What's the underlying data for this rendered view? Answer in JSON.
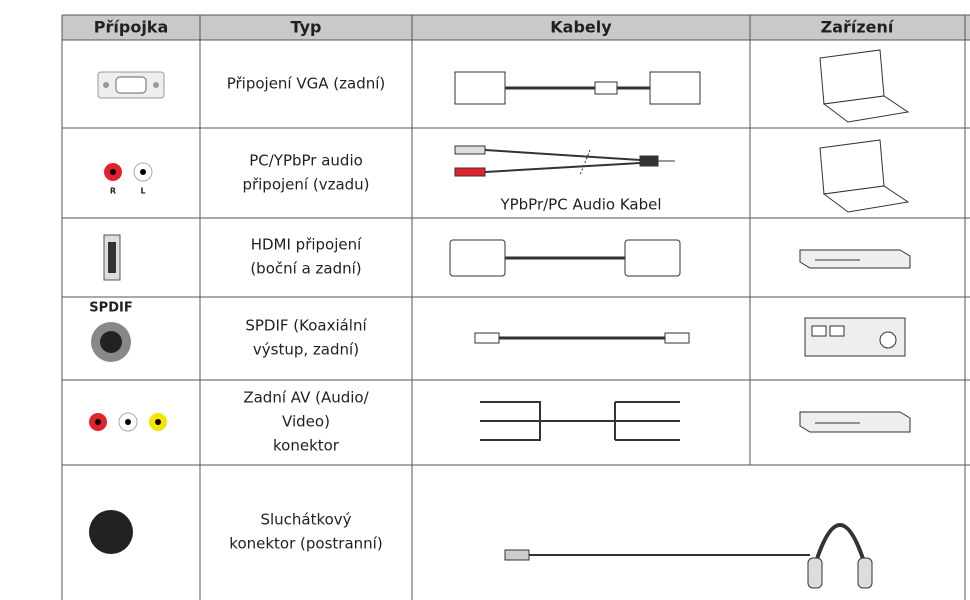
{
  "table": {
    "header": [
      "Přípojka",
      "Typ",
      "Kabely",
      "Zařízení"
    ],
    "rows": [
      {
        "type": [
          "Připojení VGA (zadní)"
        ]
      },
      {
        "type": [
          "PC/YPbPr audio",
          "připojení (vzadu)"
        ],
        "connector_labels": [
          "R",
          "L"
        ],
        "cable_label": "YPbPr/PC Audio Kabel"
      },
      {
        "type": [
          "HDMI připojení",
          "(boční a zadní)"
        ]
      },
      {
        "type": [
          "SPDIF (Koaxiální",
          "výstup, zadní)"
        ],
        "connector_label": "SPDIF"
      },
      {
        "type": [
          "Zadní AV (Audio/",
          "Video)",
          "konektor"
        ]
      },
      {
        "type": [
          "Sluchátkový",
          "konektor (postranní)"
        ]
      }
    ]
  }
}
